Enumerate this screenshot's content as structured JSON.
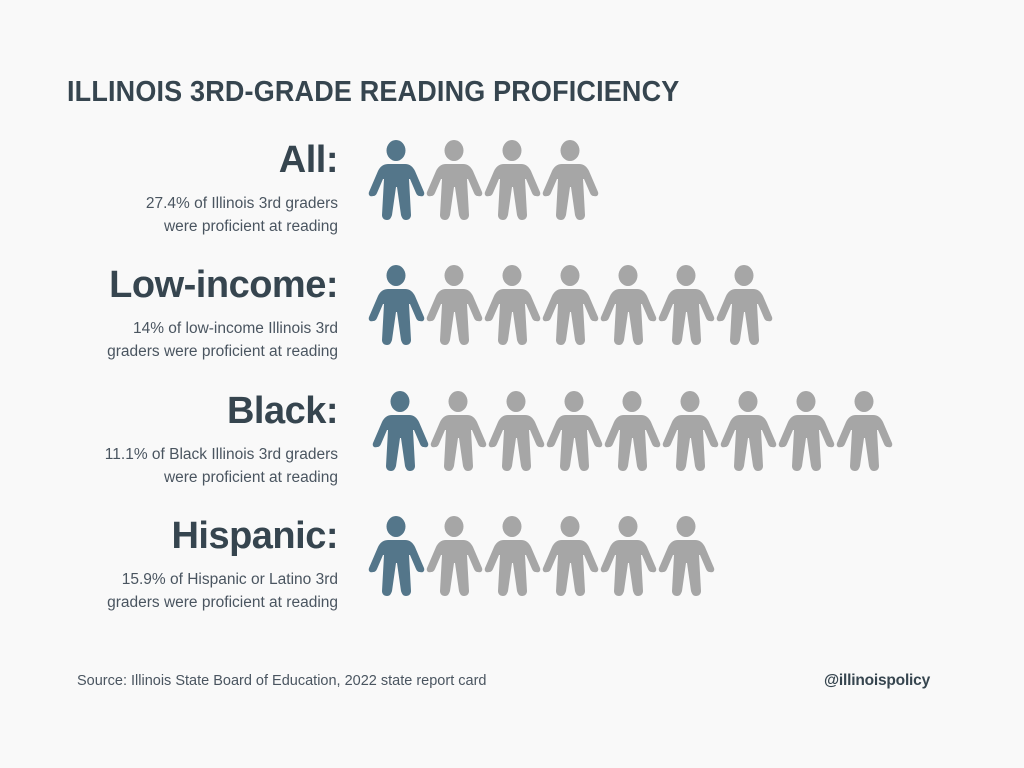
{
  "title": "ILLINOIS 3RD-GRADE READING PROFICIENCY",
  "colors": {
    "background": "#f9f9f9",
    "text": "#36454f",
    "proficient": "#54768a",
    "not_proficient": "#a6a6a6"
  },
  "rows": [
    {
      "heading": "All:",
      "line1": "27.4% of Illinois 3rd graders",
      "line2": "were proficient at reading",
      "total_icons": 4,
      "highlighted_icons": 1
    },
    {
      "heading": "Low-income:",
      "line1": "14% of low-income Illinois 3rd",
      "line2": "graders were proficient at reading",
      "total_icons": 7,
      "highlighted_icons": 1
    },
    {
      "heading": "Black:",
      "line1": "11.1% of Black Illinois 3rd graders",
      "line2": "were proficient at reading",
      "total_icons": 9,
      "highlighted_icons": 1
    },
    {
      "heading": "Hispanic:",
      "line1": "15.9% of Hispanic or Latino 3rd",
      "line2": "graders were proficient at reading",
      "total_icons": 6,
      "highlighted_icons": 1
    }
  ],
  "footer": {
    "source": "Source: Illinois State Board of Education, 2022 state report card",
    "handle": "@illinoispolicy"
  },
  "chart_data": {
    "type": "bar",
    "title": "ILLINOIS 3RD-GRADE READING PROFICIENCY",
    "categories": [
      "All",
      "Low-income",
      "Black",
      "Hispanic"
    ],
    "values": [
      27.4,
      14,
      11.1,
      15.9
    ],
    "unit": "% proficient",
    "representation": "pictogram: 1 highlighted person out of N (approx. 1 in 4, 1 in 7, 1 in 9, 1 in 6)",
    "icons_total": [
      4,
      7,
      9,
      6
    ],
    "icons_highlighted": [
      1,
      1,
      1,
      1
    ],
    "xlabel": "",
    "ylabel": "",
    "source": "Source: Illinois State Board of Education, 2022 state report card"
  }
}
